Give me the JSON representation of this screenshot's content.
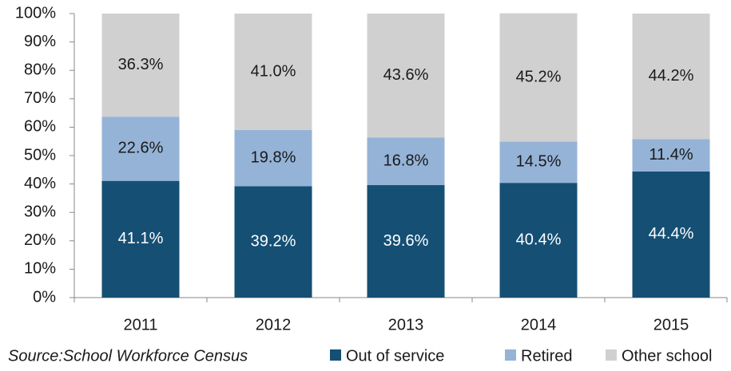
{
  "chart_data": {
    "type": "stacked-bar",
    "categories": [
      "2011",
      "2012",
      "2013",
      "2014",
      "2015"
    ],
    "series": [
      {
        "name": "Out of service",
        "color": "#154f74",
        "label_color": "#ffffff",
        "values": [
          41.1,
          39.2,
          39.6,
          40.4,
          44.4
        ],
        "value_labels": [
          "41.1%",
          "39.2%",
          "39.6%",
          "40.4%",
          "44.4%"
        ]
      },
      {
        "name": "Retired",
        "color": "#95b3d7",
        "label_color": "#1a1a1a",
        "values": [
          22.6,
          19.8,
          16.8,
          14.5,
          11.4
        ],
        "value_labels": [
          "22.6%",
          "19.8%",
          "16.8%",
          "14.5%",
          "11.4%"
        ]
      },
      {
        "name": "Other school",
        "color": "#d0d0d0",
        "label_color": "#1a1a1a",
        "values": [
          36.3,
          41.0,
          43.6,
          45.2,
          44.2
        ],
        "value_labels": [
          "36.3%",
          "41.0%",
          "43.6%",
          "45.2%",
          "44.2%"
        ]
      }
    ],
    "ylim": [
      0,
      100
    ],
    "yticks": [
      {
        "value": 0,
        "label": "0%"
      },
      {
        "value": 10,
        "label": "10%"
      },
      {
        "value": 20,
        "label": "20%"
      },
      {
        "value": 30,
        "label": "30%"
      },
      {
        "value": 40,
        "label": "40%"
      },
      {
        "value": 50,
        "label": "50%"
      },
      {
        "value": 60,
        "label": "60%"
      },
      {
        "value": 70,
        "label": "70%"
      },
      {
        "value": 80,
        "label": "80%"
      },
      {
        "value": 90,
        "label": "90%"
      },
      {
        "value": 100,
        "label": "100%"
      }
    ],
    "source": "Source:School Workforce Census",
    "legend": "bottom-right"
  }
}
